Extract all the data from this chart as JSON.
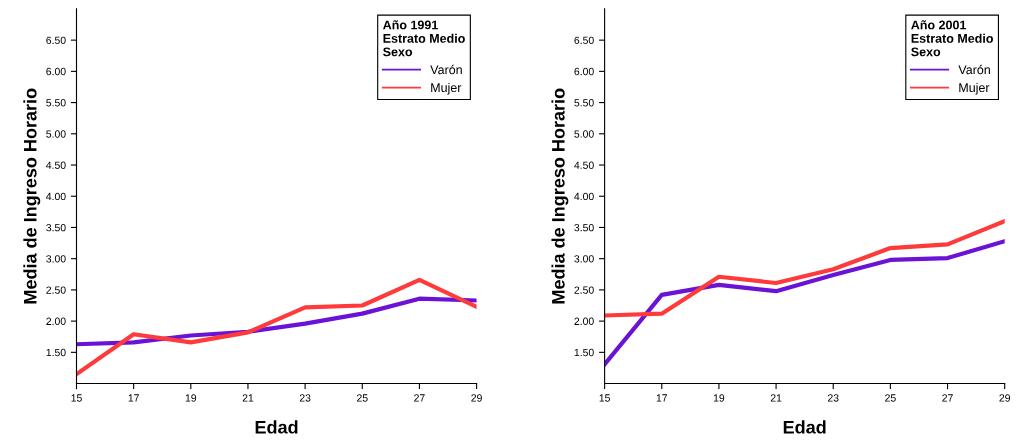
{
  "chart_data": [
    {
      "type": "line",
      "xlabel": "Edad",
      "ylabel": "Media de Ingreso Horario",
      "legend_title": "Año 1991\nEstrato Medio\nSexo",
      "legend": "top right",
      "grid": false,
      "x": [
        15,
        17,
        19,
        21,
        23,
        25,
        27,
        29
      ],
      "series": [
        {
          "name": "Varón",
          "color": "#6a12d6",
          "values": [
            1.63,
            1.66,
            1.77,
            1.83,
            1.96,
            2.12,
            2.36,
            2.33
          ]
        },
        {
          "name": "Mujer",
          "color": "#ff3a3a",
          "values": [
            1.15,
            1.79,
            1.66,
            1.82,
            2.22,
            2.25,
            2.66,
            2.23
          ]
        }
      ],
      "xlim": [
        15,
        29
      ],
      "xticks": [
        15,
        17,
        19,
        21,
        23,
        25,
        27,
        29
      ],
      "ylim": [
        1.0,
        7.0
      ],
      "yticks": [
        {
          "value": 1.5,
          "label": "1.50"
        },
        {
          "value": 2.0,
          "label": "2.00"
        },
        {
          "value": 2.5,
          "label": "2.50"
        },
        {
          "value": 3.0,
          "label": "3.00"
        },
        {
          "value": 3.5,
          "label": "3.50"
        },
        {
          "value": 4.0,
          "label": "4.00"
        },
        {
          "value": 4.5,
          "label": "4.50"
        },
        {
          "value": 5.0,
          "label": "5.00"
        },
        {
          "value": 5.5,
          "label": "5.50"
        },
        {
          "value": 6.0,
          "label": "6.00"
        },
        {
          "value": 6.5,
          "label": "6.50"
        }
      ]
    },
    {
      "type": "line",
      "xlabel": "Edad",
      "ylabel": "Media de Ingreso Horario",
      "legend_title": "Año 2001\nEstrato Medio\nSexo",
      "legend": "top right",
      "grid": false,
      "x": [
        15,
        17,
        19,
        21,
        23,
        25,
        27,
        29
      ],
      "series": [
        {
          "name": "Varón",
          "color": "#6a12d6",
          "values": [
            1.31,
            2.42,
            2.58,
            2.48,
            2.74,
            2.98,
            3.01,
            3.28
          ]
        },
        {
          "name": "Mujer",
          "color": "#ff3a3a",
          "values": [
            2.09,
            2.12,
            2.71,
            2.61,
            2.83,
            3.17,
            3.23,
            3.6
          ]
        }
      ],
      "xlim": [
        15,
        29
      ],
      "xticks": [
        15,
        17,
        19,
        21,
        23,
        25,
        27,
        29
      ],
      "ylim": [
        1.0,
        7.0
      ],
      "yticks": [
        {
          "value": 1.5,
          "label": "1.50"
        },
        {
          "value": 2.0,
          "label": "2.00"
        },
        {
          "value": 2.5,
          "label": "2.50"
        },
        {
          "value": 3.0,
          "label": "3.00"
        },
        {
          "value": 3.5,
          "label": "3.50"
        },
        {
          "value": 4.0,
          "label": "4.00"
        },
        {
          "value": 4.5,
          "label": "4.50"
        },
        {
          "value": 5.0,
          "label": "5.00"
        },
        {
          "value": 5.5,
          "label": "5.50"
        },
        {
          "value": 6.0,
          "label": "6.00"
        },
        {
          "value": 6.5,
          "label": "6.50"
        }
      ]
    }
  ]
}
